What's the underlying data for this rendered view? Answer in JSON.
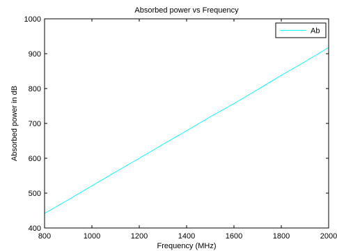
{
  "chart_data": {
    "type": "line",
    "title": "Absorbed power vs Frequency",
    "xlabel": "Frequency (MHz)",
    "ylabel": "Absorbed power in dB",
    "xlim": [
      800,
      2000
    ],
    "ylim": [
      400,
      1000
    ],
    "xticks": [
      800,
      1000,
      1200,
      1400,
      1600,
      1800,
      2000
    ],
    "yticks": [
      400,
      500,
      600,
      700,
      800,
      900,
      1000
    ],
    "grid": false,
    "legend_position": "top-right",
    "series": [
      {
        "name": "Ab",
        "color": "#00ffff",
        "x": [
          800,
          900,
          1000,
          1100,
          1200,
          1300,
          1400,
          1500,
          1600,
          1700,
          1800,
          1900,
          2000
        ],
        "y": [
          442,
          481,
          521,
          561,
          600,
          640,
          679,
          719,
          757,
          797,
          838,
          877,
          918
        ]
      }
    ]
  }
}
